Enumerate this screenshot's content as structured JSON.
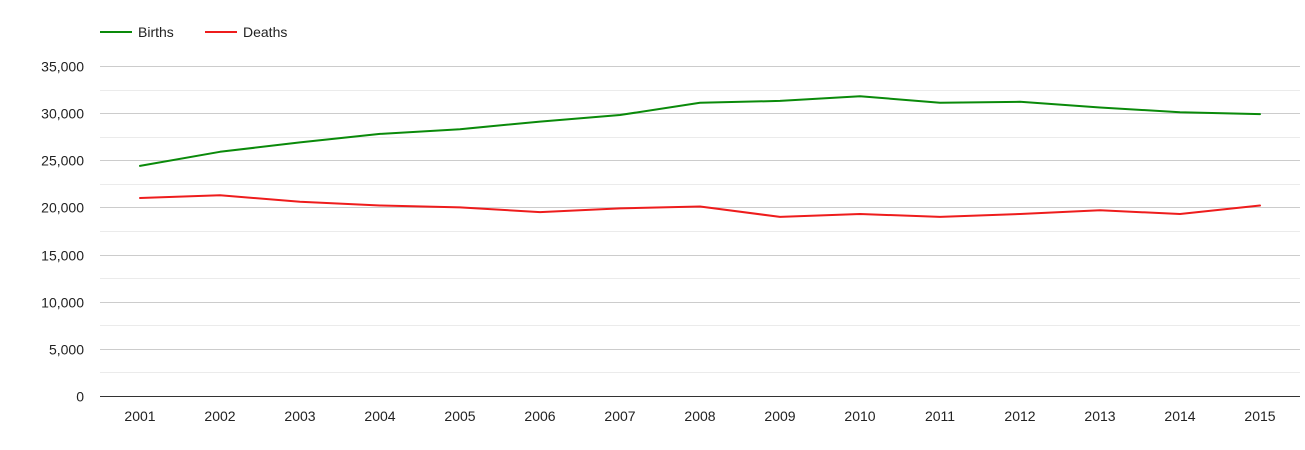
{
  "chart_data": {
    "type": "line",
    "title": "",
    "xlabel": "",
    "ylabel": "",
    "categories": [
      "2001",
      "2002",
      "2003",
      "2004",
      "2005",
      "2006",
      "2007",
      "2008",
      "2009",
      "2010",
      "2011",
      "2012",
      "2013",
      "2014",
      "2015"
    ],
    "ylim": [
      0,
      35000
    ],
    "yticks": [
      0,
      5000,
      10000,
      15000,
      20000,
      25000,
      30000,
      35000
    ],
    "ytick_labels": [
      "0",
      "5,000",
      "10,000",
      "15,000",
      "20,000",
      "25,000",
      "30,000",
      "35,000"
    ],
    "grid": true,
    "legend": "top-left",
    "series": [
      {
        "name": "Births",
        "color": "#0a8a0a",
        "values": [
          24400,
          25900,
          26900,
          27800,
          28300,
          29100,
          29800,
          31100,
          31300,
          31800,
          31100,
          31200,
          30600,
          30100,
          29900
        ]
      },
      {
        "name": "Deaths",
        "color": "#ee1c1c",
        "values": [
          21000,
          21300,
          20600,
          20200,
          20000,
          19500,
          19900,
          20100,
          19000,
          19300,
          19000,
          19300,
          19700,
          19300,
          20200
        ]
      }
    ]
  }
}
